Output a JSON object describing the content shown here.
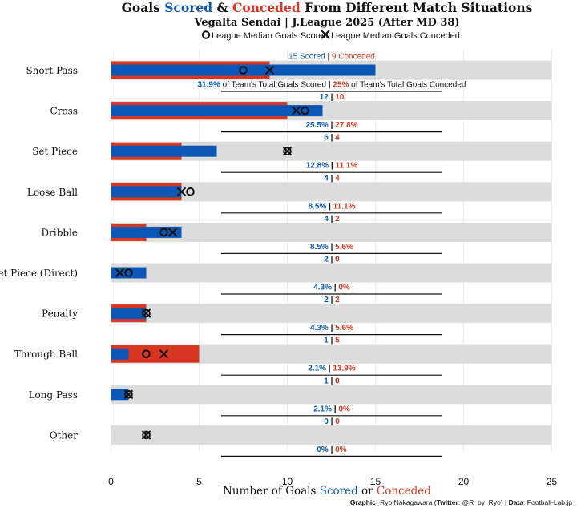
{
  "title": {
    "prefix": "Goals ",
    "scored_word": "Scored",
    "amp": " & ",
    "conceded_word": "Conceded",
    "suffix": " From Different Match Situations"
  },
  "subtitle": "Vegalta Sendai | J.League 2025 (After MD 38)",
  "legend": {
    "median_scored": "League Median Goals Scored",
    "median_conceded": "League Median Goals Conceded"
  },
  "colors": {
    "scored": "#0b57b5",
    "conceded": "#d93621",
    "track": "#dcdcdc"
  },
  "xaxis": {
    "label_prefix": "Number of Goals ",
    "label_scored": "Scored",
    "label_mid": " or ",
    "label_conceded": "Conceded"
  },
  "first_row_notes": {
    "scored_word": "Scored",
    "conceded_word": "Conceded",
    "scored_pct_suffix": " of Team's Total Goals Scored",
    "conceded_pct_suffix": " of Team's Total Goals Conceded"
  },
  "caption": {
    "graphic_label": "Graphic:",
    "graphic_author": " Ryo Nakagawara (",
    "twitter_label": "Twitter",
    "twitter_handle": ": @R_by_Ryo) | ",
    "data_label": "Data",
    "data_source": ": Football-Lab.jp"
  },
  "chart_data": {
    "type": "bar",
    "orientation": "horizontal",
    "categories": [
      "Short Pass",
      "Cross",
      "Set Piece",
      "Loose Ball",
      "Dribble",
      "Set Piece (Direct)",
      "Penalty",
      "Through Ball",
      "Long Pass",
      "Other"
    ],
    "series": [
      {
        "name": "Scored",
        "values": [
          15,
          12,
          6,
          4,
          4,
          2,
          2,
          1,
          1,
          0
        ]
      },
      {
        "name": "Conceded",
        "values": [
          9,
          10,
          4,
          4,
          2,
          0,
          2,
          5,
          0,
          0
        ]
      },
      {
        "name": "League Median Goals Scored",
        "marker": "circle",
        "values": [
          7.5,
          11,
          10,
          4.5,
          3,
          1,
          2,
          2,
          1,
          2
        ]
      },
      {
        "name": "League Median Goals Conceded",
        "marker": "x",
        "values": [
          9,
          10.5,
          10,
          4,
          3.5,
          0.5,
          2,
          3,
          1,
          2
        ]
      }
    ],
    "scored_pct": [
      "31.9%",
      "25.5%",
      "12.8%",
      "8.5%",
      "8.5%",
      "4.3%",
      "4.3%",
      "2.1%",
      "2.1%",
      "0%"
    ],
    "conceded_pct": [
      "25%",
      "27.8%",
      "11.1%",
      "11.1%",
      "5.6%",
      "0%",
      "5.6%",
      "13.9%",
      "0%",
      "0%"
    ],
    "xlim": [
      0,
      25
    ],
    "xticks": [
      0,
      5,
      10,
      15,
      20,
      25
    ],
    "xlabel": "Number of Goals Scored or Conceded",
    "ylabel": ""
  }
}
